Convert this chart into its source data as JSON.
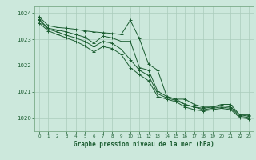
{
  "background_color": "#cce8dc",
  "plot_bg_color": "#cce8dc",
  "grid_color": "#aaccbb",
  "line_color": "#1a5c30",
  "marker_color": "#1a5c30",
  "xlabel": "Graphe pression niveau de la mer (hPa)",
  "xlabel_color": "#1a5c30",
  "tick_color": "#1a5c30",
  "spine_color": "#7aaa88",
  "ylim": [
    1019.5,
    1024.25
  ],
  "xlim": [
    -0.5,
    23.5
  ],
  "yticks": [
    1020,
    1021,
    1022,
    1023,
    1024
  ],
  "xticks": [
    0,
    1,
    2,
    3,
    4,
    5,
    6,
    7,
    8,
    9,
    10,
    11,
    12,
    13,
    14,
    15,
    16,
    17,
    18,
    19,
    20,
    21,
    22,
    23
  ],
  "series": [
    [
      1023.85,
      1023.52,
      1023.45,
      1023.42,
      1023.38,
      1023.32,
      1023.28,
      1023.25,
      1023.22,
      1023.18,
      1023.72,
      1023.02,
      1022.05,
      1021.82,
      1020.82,
      1020.72,
      1020.72,
      1020.52,
      1020.42,
      1020.42,
      1020.52,
      1020.52,
      1020.12,
      1020.12
    ],
    [
      1023.75,
      1023.42,
      1023.35,
      1023.28,
      1023.18,
      1023.08,
      1022.85,
      1023.12,
      1023.05,
      1022.92,
      1022.92,
      1021.92,
      1021.82,
      1021.02,
      1020.82,
      1020.72,
      1020.52,
      1020.42,
      1020.37,
      1020.42,
      1020.47,
      1020.42,
      1020.12,
      1020.07
    ],
    [
      1023.72,
      1023.38,
      1023.28,
      1023.15,
      1023.05,
      1022.92,
      1022.72,
      1022.92,
      1022.85,
      1022.62,
      1022.22,
      1021.82,
      1021.62,
      1020.92,
      1020.77,
      1020.67,
      1020.52,
      1020.42,
      1020.32,
      1020.37,
      1020.42,
      1020.37,
      1020.07,
      1020.02
    ],
    [
      1023.62,
      1023.32,
      1023.18,
      1023.05,
      1022.92,
      1022.75,
      1022.52,
      1022.72,
      1022.65,
      1022.42,
      1021.92,
      1021.65,
      1021.42,
      1020.82,
      1020.72,
      1020.62,
      1020.42,
      1020.32,
      1020.27,
      1020.32,
      1020.37,
      1020.32,
      1020.02,
      1019.97
    ]
  ]
}
